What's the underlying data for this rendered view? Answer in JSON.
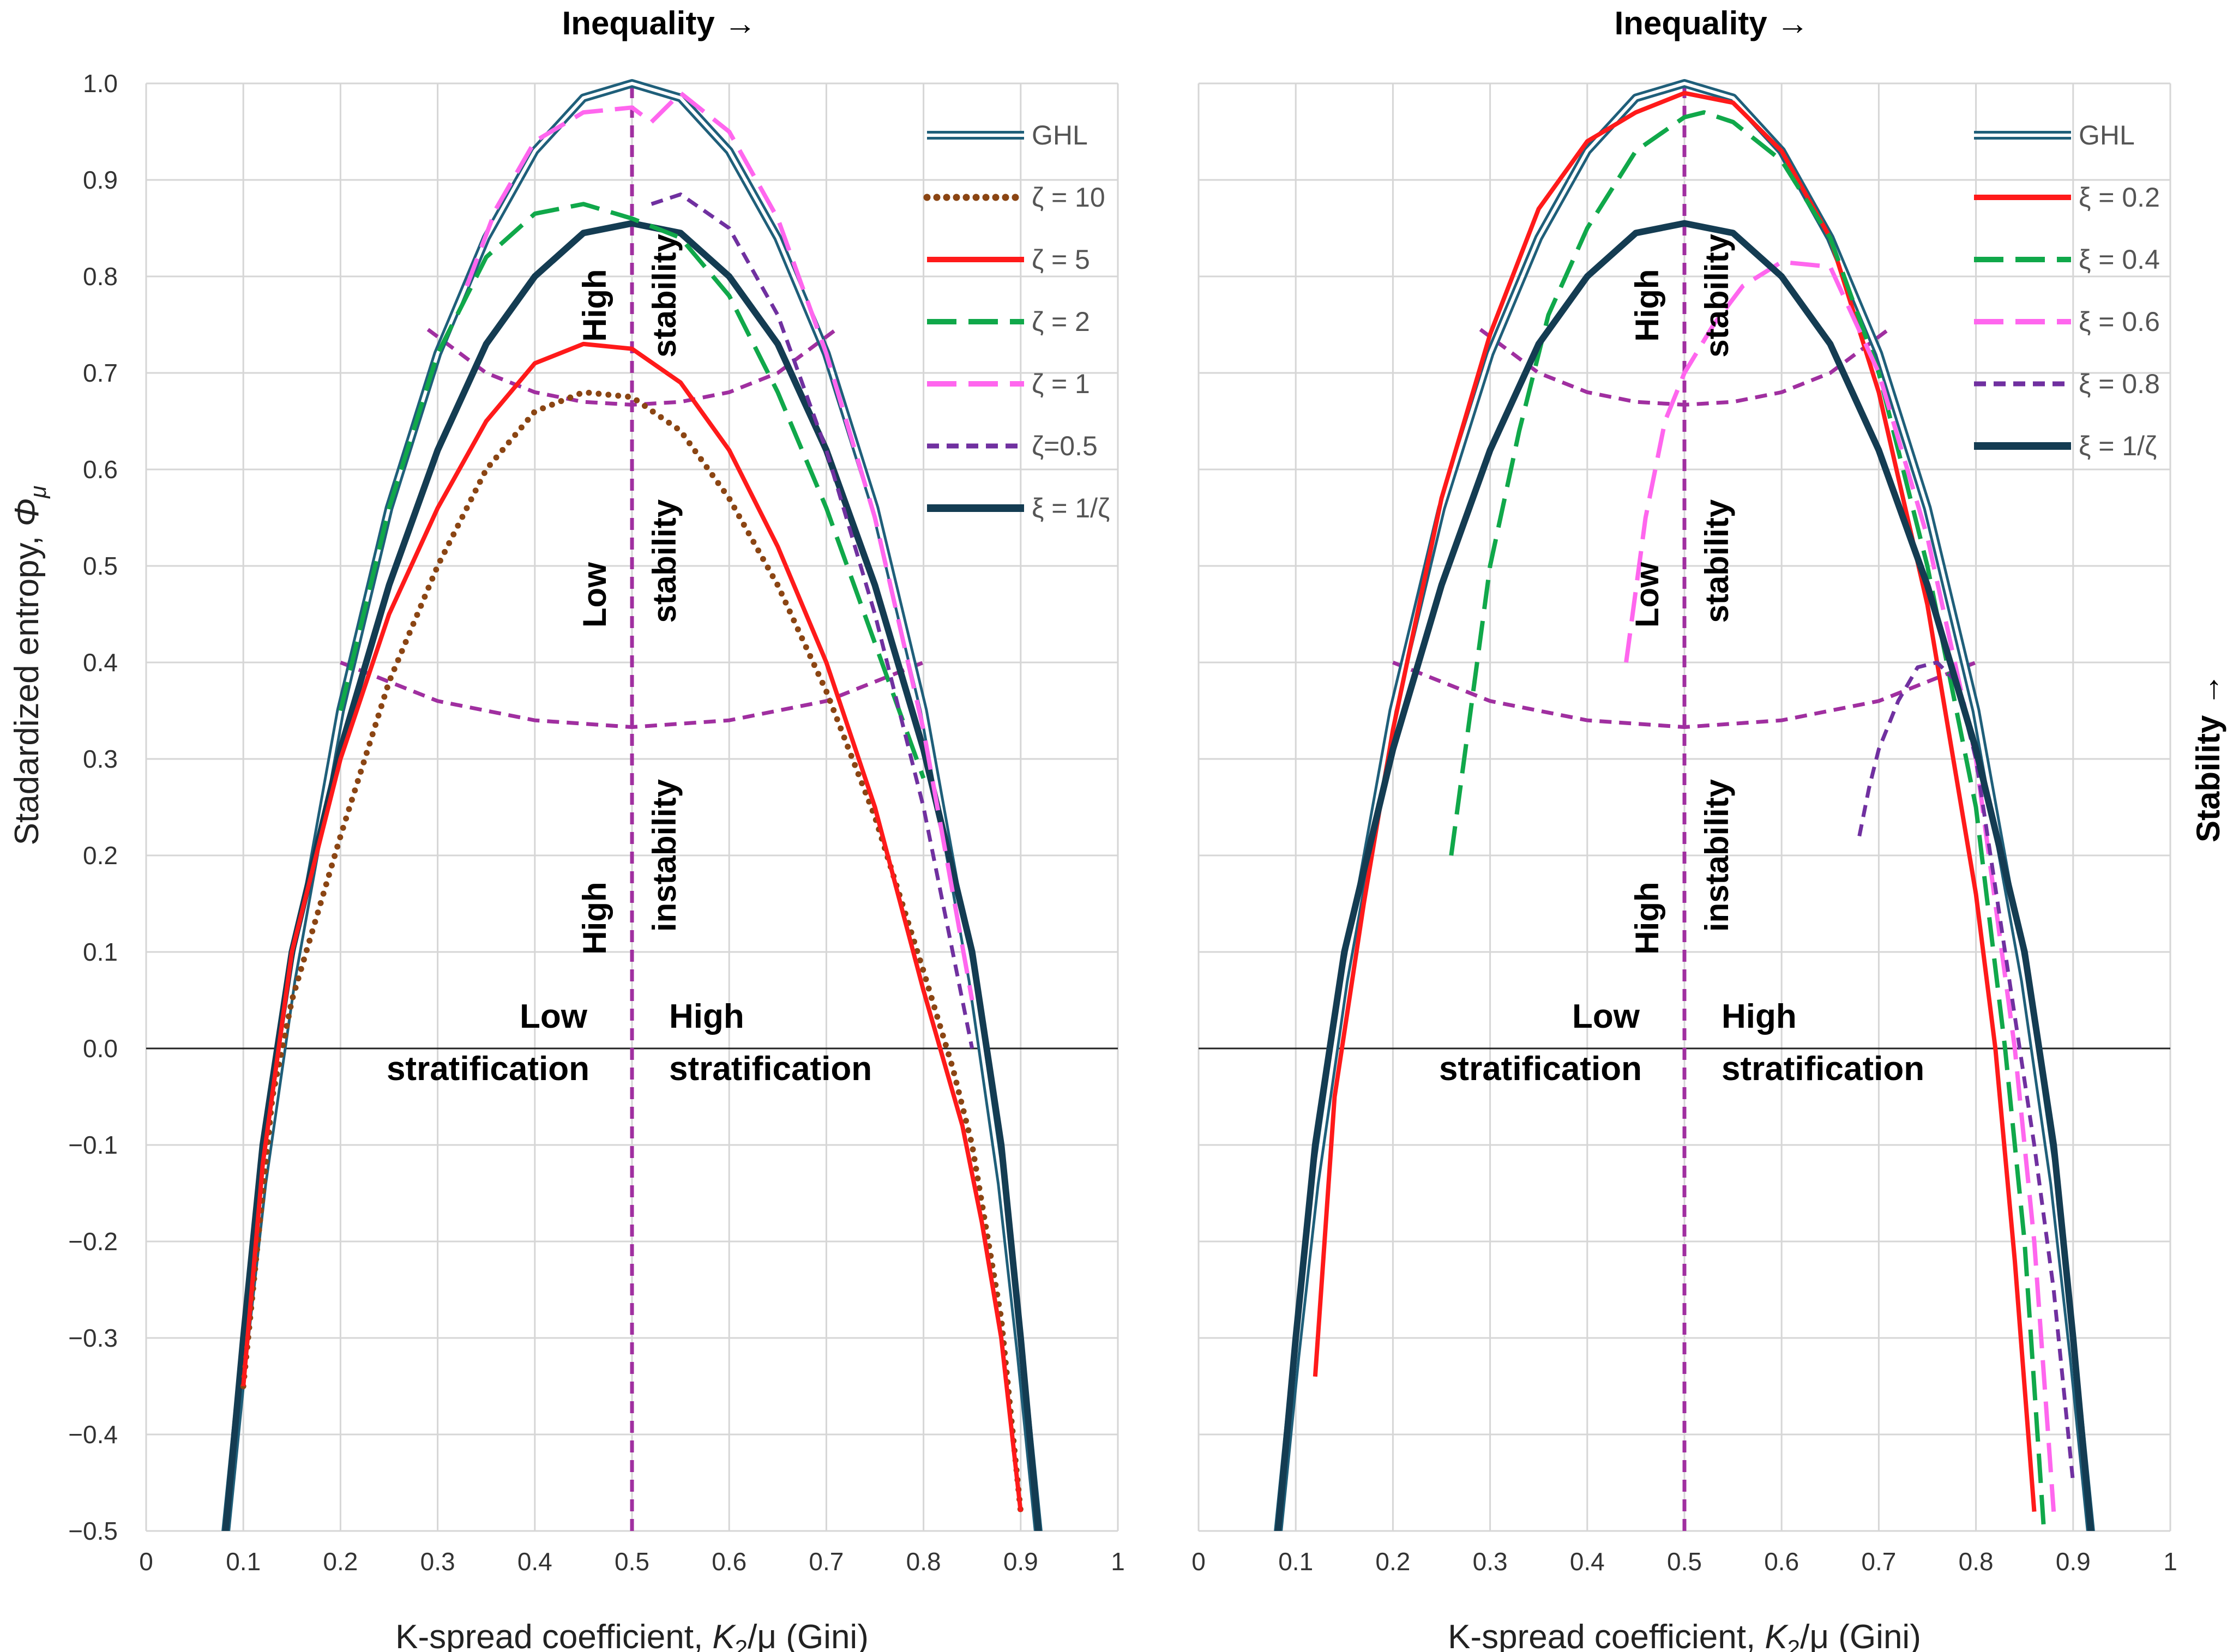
{
  "chart_data": [
    {
      "type": "line",
      "panel": "left",
      "title": "Inequality →",
      "xlabel": "K-spread coefficient, K2/μ (Gini)",
      "xlabel_parts": [
        "K-spread coefficient, ",
        "K",
        "2",
        "/μ (Gini)"
      ],
      "ylabel": "Stadardized entropy, Φμ",
      "ylabel_parts": [
        "Stadardized entropy, ",
        "Φ",
        "μ"
      ],
      "xlim": [
        0,
        1
      ],
      "ylim": [
        -0.5,
        1.0
      ],
      "x_ticks": [
        0,
        0.1,
        0.2,
        0.3,
        0.4,
        0.5,
        0.6,
        0.7,
        0.8,
        0.9,
        1
      ],
      "x_tick_labels": [
        "0",
        "0.1",
        "0.2",
        "0.3",
        "0.4",
        "0.5",
        "0.6",
        "0.7",
        "0.8",
        "0.9",
        "1"
      ],
      "y_ticks": [
        1.0,
        0.9,
        0.8,
        0.7,
        0.6,
        0.5,
        0.4,
        0.3,
        0.2,
        0.1,
        0.0,
        -0.1,
        -0.2,
        -0.3,
        -0.4,
        -0.5
      ],
      "y_tick_labels": [
        "1.0",
        "0.9",
        "0.8",
        "0.7",
        "0.6",
        "0.5",
        "0.4",
        "0.3",
        "0.2",
        "0.1",
        "0.0",
        "-0.1",
        "-0.2",
        "-0.3",
        "-0.4",
        "-0.5"
      ],
      "grid": true,
      "legend_position": "top-right",
      "series": [
        {
          "name": "GHL",
          "style": "double",
          "color": "#1f5f7a",
          "x": [
            0.08,
            0.1,
            0.12,
            0.15,
            0.2,
            0.25,
            0.3,
            0.35,
            0.4,
            0.45,
            0.5,
            0.55,
            0.6,
            0.65,
            0.7,
            0.75,
            0.8,
            0.85,
            0.88,
            0.9,
            0.92
          ],
          "y": [
            -0.52,
            -0.32,
            -0.14,
            0.07,
            0.35,
            0.56,
            0.72,
            0.84,
            0.93,
            0.985,
            1.0,
            0.985,
            0.93,
            0.84,
            0.72,
            0.56,
            0.35,
            0.07,
            -0.14,
            -0.32,
            -0.52
          ]
        },
        {
          "name": "ζ = 10",
          "style": "dotted",
          "color": "#8b4513",
          "x": [
            0.1,
            0.13,
            0.15,
            0.2,
            0.25,
            0.3,
            0.35,
            0.4,
            0.45,
            0.5,
            0.55,
            0.6,
            0.65,
            0.7,
            0.75,
            0.8,
            0.83,
            0.85,
            0.88,
            0.9
          ],
          "y": [
            -0.35,
            -0.05,
            0.05,
            0.22,
            0.38,
            0.5,
            0.6,
            0.66,
            0.68,
            0.675,
            0.64,
            0.57,
            0.48,
            0.37,
            0.24,
            0.08,
            -0.02,
            -0.1,
            -0.28,
            -0.48
          ]
        },
        {
          "name": "ζ = 5",
          "style": "solid",
          "color": "#ff1a1a",
          "x": [
            0.1,
            0.12,
            0.15,
            0.2,
            0.25,
            0.3,
            0.35,
            0.4,
            0.45,
            0.5,
            0.55,
            0.6,
            0.65,
            0.7,
            0.75,
            0.8,
            0.84,
            0.86,
            0.88,
            0.9
          ],
          "y": [
            -0.35,
            -0.12,
            0.1,
            0.3,
            0.45,
            0.56,
            0.65,
            0.71,
            0.73,
            0.725,
            0.69,
            0.62,
            0.52,
            0.4,
            0.25,
            0.06,
            -0.08,
            -0.18,
            -0.3,
            -0.48
          ]
        },
        {
          "name": "ζ = 2",
          "style": "dashed",
          "color": "#10a84a",
          "x": [
            0.2,
            0.25,
            0.3,
            0.35,
            0.4,
            0.45,
            0.5,
            0.55,
            0.6,
            0.65,
            0.7,
            0.75,
            0.8
          ],
          "y": [
            0.35,
            0.56,
            0.72,
            0.82,
            0.865,
            0.875,
            0.86,
            0.84,
            0.78,
            0.68,
            0.56,
            0.42,
            0.28
          ]
        },
        {
          "name": "ζ = 1",
          "style": "dashed",
          "color": "#ff66ee",
          "x": [
            0.33,
            0.36,
            0.4,
            0.45,
            0.5,
            0.52,
            0.55,
            0.6,
            0.65,
            0.7,
            0.75,
            0.8,
            0.85
          ],
          "y": [
            0.79,
            0.87,
            0.94,
            0.97,
            0.975,
            0.96,
            0.99,
            0.95,
            0.86,
            0.72,
            0.55,
            0.33,
            0.05
          ]
        },
        {
          "name": "ζ=0.5",
          "style": "shortdash",
          "color": "#7030a0",
          "x": [
            0.52,
            0.55,
            0.6,
            0.65,
            0.7,
            0.75,
            0.8,
            0.85
          ],
          "y": [
            0.875,
            0.885,
            0.85,
            0.76,
            0.62,
            0.45,
            0.25,
            0.0
          ]
        },
        {
          "name": "ξ = 1/ζ",
          "style": "thick",
          "color": "#143c52",
          "x": [
            0.08,
            0.1,
            0.12,
            0.15,
            0.2,
            0.25,
            0.3,
            0.35,
            0.4,
            0.45,
            0.5,
            0.55,
            0.6,
            0.65,
            0.7,
            0.75,
            0.8,
            0.85,
            0.88,
            0.9,
            0.92
          ],
          "y": [
            -0.52,
            -0.3,
            -0.1,
            0.1,
            0.31,
            0.48,
            0.62,
            0.73,
            0.8,
            0.845,
            0.855,
            0.845,
            0.8,
            0.73,
            0.62,
            0.48,
            0.31,
            0.1,
            -0.1,
            -0.3,
            -0.52
          ]
        }
      ],
      "guides": [
        {
          "name": "stability-high-boundary",
          "x": [
            0.29,
            0.35,
            0.4,
            0.45,
            0.5,
            0.55,
            0.6,
            0.65,
            0.71
          ],
          "y": [
            0.745,
            0.7,
            0.68,
            0.67,
            0.667,
            0.67,
            0.68,
            0.7,
            0.745
          ]
        },
        {
          "name": "stability-low-boundary",
          "x": [
            0.2,
            0.3,
            0.4,
            0.5,
            0.6,
            0.7,
            0.8
          ],
          "y": [
            0.4,
            0.36,
            0.34,
            0.333,
            0.34,
            0.36,
            0.4
          ]
        },
        {
          "name": "vertical-divider",
          "x": [
            0.5,
            0.5
          ],
          "y": [
            -0.5,
            1.0
          ]
        }
      ],
      "annotations": {
        "high_stability_left": "High",
        "high_stability_right": "stability",
        "low_stability_left": "Low",
        "low_stability_right": "stability",
        "high_instability_left": "High",
        "high_instability_right": "instability",
        "low_strat_1": "Low",
        "low_strat_2": "stratification",
        "high_strat_1": "High",
        "high_strat_2": "stratification"
      }
    },
    {
      "type": "line",
      "panel": "right",
      "title": "Inequality →",
      "xlabel": "K-spread coefficient, K2/μ (Gini)",
      "xlabel_parts": [
        "K-spread coefficient, ",
        "K",
        "2",
        "/μ (Gini)"
      ],
      "right_label": "Stability →",
      "xlim": [
        0,
        1
      ],
      "ylim": [
        -0.5,
        1.0
      ],
      "x_ticks": [
        0,
        0.1,
        0.2,
        0.3,
        0.4,
        0.5,
        0.6,
        0.7,
        0.8,
        0.9,
        1
      ],
      "x_tick_labels": [
        "0",
        "0.1",
        "0.2",
        "0.3",
        "0.4",
        "0.5",
        "0.6",
        "0.7",
        "0.8",
        "0.9",
        "1"
      ],
      "grid": true,
      "legend_position": "top-right",
      "series": [
        {
          "name": "GHL",
          "style": "double",
          "color": "#1f5f7a",
          "x": [
            0.08,
            0.1,
            0.12,
            0.15,
            0.2,
            0.25,
            0.3,
            0.35,
            0.4,
            0.45,
            0.5,
            0.55,
            0.6,
            0.65,
            0.7,
            0.75,
            0.8,
            0.85,
            0.88,
            0.9,
            0.92
          ],
          "y": [
            -0.52,
            -0.32,
            -0.14,
            0.07,
            0.35,
            0.56,
            0.72,
            0.84,
            0.93,
            0.985,
            1.0,
            0.985,
            0.93,
            0.84,
            0.72,
            0.56,
            0.35,
            0.07,
            -0.14,
            -0.32,
            -0.52
          ]
        },
        {
          "name": "ξ = 0.2",
          "style": "solid",
          "color": "#ff1a1a",
          "x": [
            0.12,
            0.14,
            0.17,
            0.2,
            0.25,
            0.3,
            0.35,
            0.4,
            0.45,
            0.5,
            0.55,
            0.6,
            0.65,
            0.7,
            0.75,
            0.78,
            0.8,
            0.82,
            0.84,
            0.86
          ],
          "y": [
            -0.34,
            -0.05,
            0.15,
            0.33,
            0.57,
            0.74,
            0.87,
            0.94,
            0.97,
            0.99,
            0.98,
            0.93,
            0.84,
            0.68,
            0.46,
            0.28,
            0.16,
            0.0,
            -0.22,
            -0.48
          ]
        },
        {
          "name": "ξ = 0.4",
          "style": "dashed",
          "color": "#10a84a",
          "x": [
            0.26,
            0.28,
            0.3,
            0.33,
            0.36,
            0.4,
            0.45,
            0.5,
            0.52,
            0.55,
            0.6,
            0.65,
            0.7,
            0.75,
            0.8,
            0.83,
            0.85,
            0.87
          ],
          "y": [
            0.2,
            0.35,
            0.5,
            0.64,
            0.76,
            0.85,
            0.93,
            0.965,
            0.97,
            0.96,
            0.92,
            0.84,
            0.7,
            0.5,
            0.25,
            0.0,
            -0.2,
            -0.5
          ]
        },
        {
          "name": "ξ = 0.6",
          "style": "dashed",
          "color": "#ff66ee",
          "x": [
            0.44,
            0.46,
            0.48,
            0.5,
            0.53,
            0.56,
            0.6,
            0.65,
            0.7,
            0.75,
            0.8,
            0.84,
            0.86,
            0.88
          ],
          "y": [
            0.4,
            0.55,
            0.65,
            0.7,
            0.75,
            0.79,
            0.815,
            0.81,
            0.7,
            0.53,
            0.3,
            0.0,
            -0.2,
            -0.48
          ]
        },
        {
          "name": "ξ = 0.8",
          "style": "shortdash",
          "color": "#7030a0",
          "x": [
            0.68,
            0.69,
            0.7,
            0.72,
            0.74,
            0.76,
            0.78,
            0.8,
            0.83,
            0.86,
            0.88,
            0.9
          ],
          "y": [
            0.22,
            0.27,
            0.31,
            0.36,
            0.395,
            0.4,
            0.38,
            0.3,
            0.1,
            -0.1,
            -0.25,
            -0.45
          ]
        },
        {
          "name": "ξ = 1/ζ",
          "style": "thick",
          "color": "#143c52",
          "x": [
            0.08,
            0.1,
            0.12,
            0.15,
            0.2,
            0.25,
            0.3,
            0.35,
            0.4,
            0.45,
            0.5,
            0.55,
            0.6,
            0.65,
            0.7,
            0.75,
            0.8,
            0.85,
            0.88,
            0.9,
            0.92
          ],
          "y": [
            -0.52,
            -0.3,
            -0.1,
            0.1,
            0.31,
            0.48,
            0.62,
            0.73,
            0.8,
            0.845,
            0.855,
            0.845,
            0.8,
            0.73,
            0.62,
            0.48,
            0.31,
            0.1,
            -0.1,
            -0.3,
            -0.52
          ]
        }
      ],
      "guides": [
        {
          "name": "stability-high-boundary",
          "x": [
            0.29,
            0.35,
            0.4,
            0.45,
            0.5,
            0.55,
            0.6,
            0.65,
            0.71
          ],
          "y": [
            0.745,
            0.7,
            0.68,
            0.67,
            0.667,
            0.67,
            0.68,
            0.7,
            0.745
          ]
        },
        {
          "name": "stability-low-boundary",
          "x": [
            0.2,
            0.3,
            0.4,
            0.5,
            0.6,
            0.7,
            0.8
          ],
          "y": [
            0.4,
            0.36,
            0.34,
            0.333,
            0.34,
            0.36,
            0.4
          ]
        },
        {
          "name": "vertical-divider",
          "x": [
            0.5,
            0.5
          ],
          "y": [
            -0.5,
            1.0
          ]
        }
      ],
      "annotations": {
        "high_stability_left": "High",
        "high_stability_right": "stability",
        "low_stability_left": "Low",
        "low_stability_right": "stability",
        "high_instability_left": "High",
        "high_instability_right": "instability",
        "low_strat_1": "Low",
        "low_strat_2": "stratification",
        "high_strat_1": "High",
        "high_strat_2": "stratification"
      }
    }
  ]
}
